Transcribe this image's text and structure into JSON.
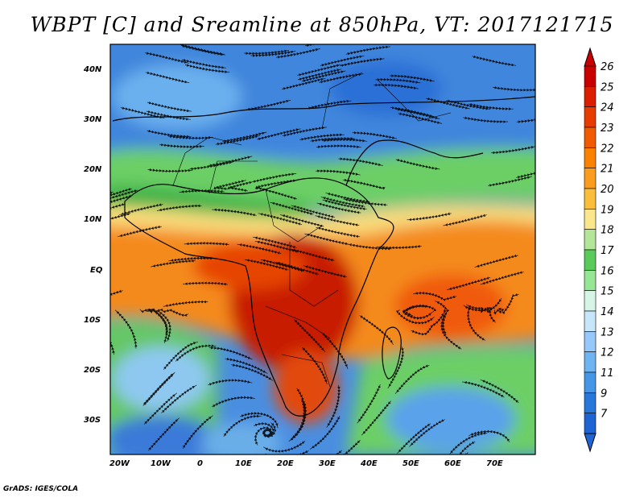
{
  "title": "WBPT [C] and Sreamline at 850hPa, VT: 2017121715",
  "credit": "GrADS: IGES/COLA",
  "lat_labels": [
    "40N",
    "30N",
    "20N",
    "10N",
    "EQ",
    "10S",
    "20S",
    "30S"
  ],
  "lon_labels": [
    "20W",
    "10W",
    "0",
    "10E",
    "20E",
    "30E",
    "40E",
    "50E",
    "60E",
    "70E"
  ],
  "colorbar": {
    "levels": [
      "26",
      "25",
      "24",
      "23",
      "22",
      "21",
      "20",
      "19",
      "18",
      "17",
      "16",
      "15",
      "14",
      "13",
      "12",
      "11",
      "9",
      "7"
    ],
    "colors": [
      "#c80000",
      "#dc1e00",
      "#e63c00",
      "#f05a00",
      "#fa8200",
      "#fa9c1e",
      "#fabe3c",
      "#fae68c",
      "#b4e69a",
      "#5aca5a",
      "#96e696",
      "#d6f5e6",
      "#c8e6fa",
      "#96c8fa",
      "#6eb4f0",
      "#4696e6",
      "#2878dc",
      "#1e64d2"
    ]
  }
}
